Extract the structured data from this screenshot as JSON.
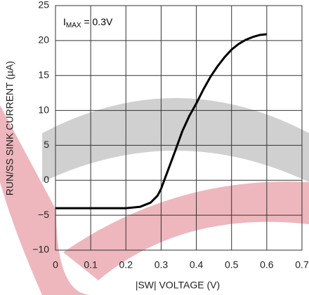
{
  "chart_data": {
    "type": "line",
    "xlabel": "|SW| VOLTAGE (V)",
    "ylabel": "RUN/SS SINK CURRENT (µA)",
    "annotation": {
      "text": "I",
      "sub": "MAX",
      "rest": " = 0.3V"
    },
    "x": [
      0,
      0.1,
      0.2,
      0.24,
      0.27,
      0.29,
      0.3,
      0.32,
      0.34,
      0.36,
      0.38,
      0.4,
      0.42,
      0.44,
      0.46,
      0.48,
      0.5,
      0.52,
      0.54,
      0.56,
      0.58,
      0.6
    ],
    "series": [
      {
        "color": "#000000",
        "values": [
          -4,
          -4,
          -4,
          -3.8,
          -3.2,
          -2.2,
          -1.2,
          1.5,
          4.2,
          7,
          9.2,
          11,
          13,
          14.8,
          16.3,
          17.6,
          18.7,
          19.5,
          20.1,
          20.5,
          20.8,
          20.9
        ]
      }
    ],
    "xlim": [
      0,
      0.7
    ],
    "ylim": [
      -10,
      25
    ],
    "xticks": [
      0,
      0.1,
      0.2,
      0.3,
      0.4,
      0.5,
      0.6,
      0.7
    ],
    "yticks": [
      {
        "value": -10,
        "label": "−10"
      },
      {
        "value": -5,
        "label": "−5"
      },
      0,
      5,
      10,
      15,
      20,
      25
    ],
    "grid": true
  }
}
